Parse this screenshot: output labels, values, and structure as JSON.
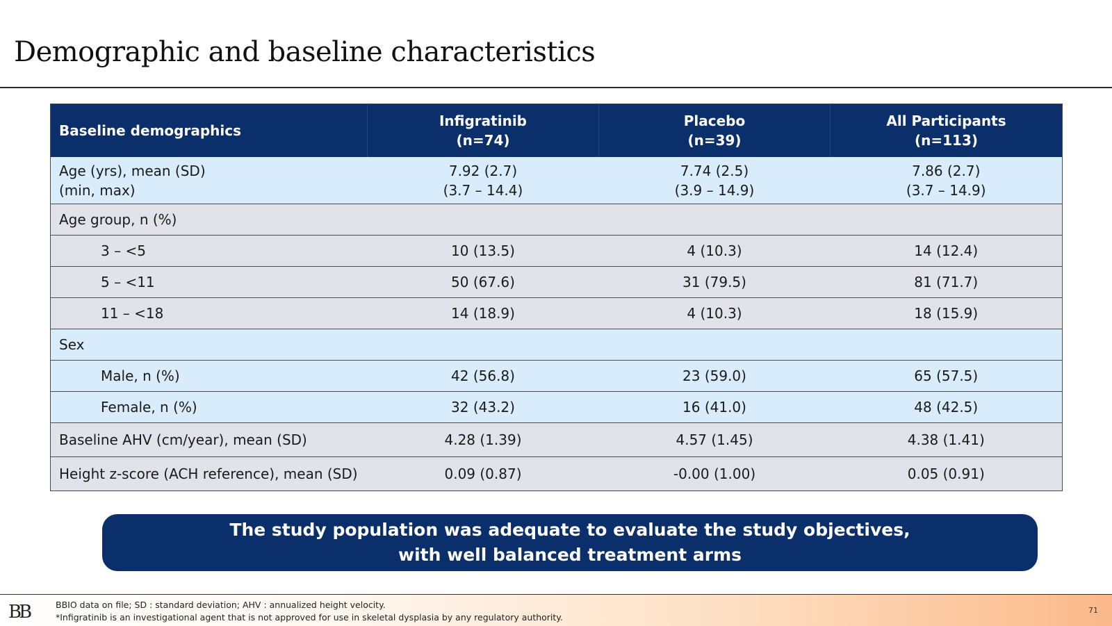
{
  "slide": {
    "title": "Demographic and baseline characteristics",
    "page_number": "71"
  },
  "table": {
    "headers": [
      {
        "line1": "Baseline demographics",
        "line2": ""
      },
      {
        "line1": "Infigratinib",
        "line2": "(n=74)"
      },
      {
        "line1": "Placebo",
        "line2": "(n=39)"
      },
      {
        "line1": "All Participants",
        "line2": "(n=113)"
      }
    ],
    "rows": [
      {
        "label": "Age (yrs), mean (SD)",
        "label2": "(min, max)",
        "values": [
          "7.92 (2.7)",
          "7.74 (2.5)",
          "7.86 (2.7)"
        ],
        "values2": [
          "(3.7 – 14.4)",
          "(3.9 – 14.9)",
          "(3.7 – 14.9)"
        ]
      },
      {
        "label": "Age group, n (%)",
        "values": [
          "",
          "",
          ""
        ]
      },
      {
        "label": "3 – <5",
        "values": [
          "10 (13.5)",
          "4 (10.3)",
          "14 (12.4)"
        ]
      },
      {
        "label": "5 – <11",
        "values": [
          "50 (67.6)",
          "31 (79.5)",
          "81 (71.7)"
        ]
      },
      {
        "label": "11 – <18",
        "values": [
          "14 (18.9)",
          "4 (10.3)",
          "18 (15.9)"
        ]
      },
      {
        "label": "Sex",
        "values": [
          "",
          "",
          ""
        ]
      },
      {
        "label": "Male, n (%)",
        "values": [
          "42 (56.8)",
          "23 (59.0)",
          "65 (57.5)"
        ]
      },
      {
        "label": "Female, n (%)",
        "values": [
          "32 (43.2)",
          "16 (41.0)",
          "48 (42.5)"
        ]
      },
      {
        "label": "Baseline AHV (cm/year), mean (SD)",
        "values": [
          "4.28 (1.39)",
          "4.57 (1.45)",
          "4.38 (1.41)"
        ]
      },
      {
        "label": "Height z-score (ACH reference), mean (SD)",
        "values": [
          "0.09 (0.87)",
          "-0.00 (1.00)",
          "0.05 (0.91)"
        ]
      }
    ]
  },
  "callout": {
    "line1": "The study population was adequate to evaluate the study objectives,",
    "line2": "with well balanced treatment arms"
  },
  "footer": {
    "logo_text": "BB",
    "note1": "BBIO data on file; SD : standard deviation; AHV : annualized height velocity.",
    "note2": "*Infigratinib is an investigational agent that is not approved for use in skeletal dysplasia by any regulatory authority."
  },
  "colors": {
    "header_navy": "#0b2f6b",
    "row_light_blue": "#d9ecfb",
    "row_gray": "#e2e2ea"
  }
}
